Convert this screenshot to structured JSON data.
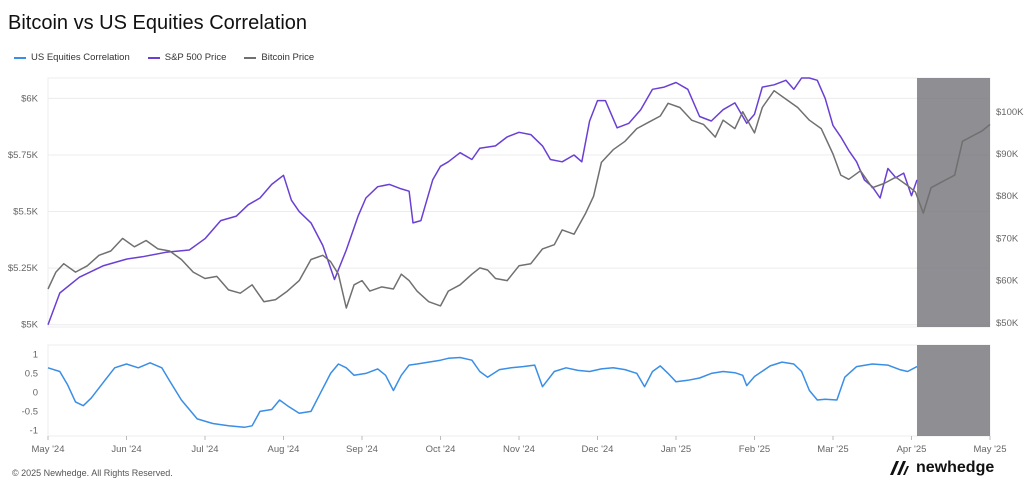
{
  "title": "Bitcoin vs US Equities Correlation",
  "footer": "© 2025 Newhedge. All Rights Reserved.",
  "brand": "newhedge",
  "colors": {
    "correlation": "#3a8ee6",
    "sp500": "#6a3fd4",
    "bitcoin": "#707070",
    "shade": "#7a7a80",
    "grid": "#ececec"
  },
  "chart_data": [
    {
      "type": "line",
      "panel": "top",
      "legend": [
        {
          "name": "US Equities Correlation",
          "color": "#3a8ee6"
        },
        {
          "name": "S&P 500 Price",
          "color": "#6a3fd4"
        },
        {
          "name": "Bitcoin Price",
          "color": "#707070"
        }
      ],
      "left_axis": {
        "ticks": [
          "$5K",
          "$5.25K",
          "$5.5K",
          "$5.75K",
          "$6K"
        ],
        "tick_values": [
          5000,
          5250,
          5500,
          5750,
          6000
        ],
        "range": [
          4990,
          6090
        ]
      },
      "right_axis": {
        "ticks": [
          "$50K",
          "$60K",
          "$70K",
          "$80K",
          "$90K",
          "$100K"
        ],
        "tick_values": [
          50000,
          60000,
          70000,
          80000,
          90000,
          100000
        ],
        "range": [
          49000,
          108000
        ]
      },
      "shaded_region": {
        "from": 11.07,
        "to": 12.0
      },
      "series": [
        {
          "name": "S&P 500 Price",
          "axis": "left",
          "points": [
            [
              0,
              5000
            ],
            [
              0.15,
              5140
            ],
            [
              0.4,
              5210
            ],
            [
              0.7,
              5260
            ],
            [
              1.0,
              5290
            ],
            [
              1.2,
              5300
            ],
            [
              1.5,
              5320
            ],
            [
              1.8,
              5330
            ],
            [
              2.0,
              5380
            ],
            [
              2.2,
              5460
            ],
            [
              2.4,
              5480
            ],
            [
              2.55,
              5530
            ],
            [
              2.7,
              5560
            ],
            [
              2.85,
              5620
            ],
            [
              3.0,
              5660
            ],
            [
              3.1,
              5550
            ],
            [
              3.2,
              5500
            ],
            [
              3.35,
              5450
            ],
            [
              3.5,
              5350
            ],
            [
              3.6,
              5250
            ],
            [
              3.65,
              5200
            ],
            [
              3.8,
              5330
            ],
            [
              3.95,
              5480
            ],
            [
              4.05,
              5560
            ],
            [
              4.2,
              5610
            ],
            [
              4.35,
              5620
            ],
            [
              4.5,
              5600
            ],
            [
              4.6,
              5590
            ],
            [
              4.65,
              5450
            ],
            [
              4.75,
              5460
            ],
            [
              4.9,
              5640
            ],
            [
              5.0,
              5700
            ],
            [
              5.1,
              5720
            ],
            [
              5.25,
              5760
            ],
            [
              5.4,
              5730
            ],
            [
              5.5,
              5780
            ],
            [
              5.7,
              5790
            ],
            [
              5.85,
              5830
            ],
            [
              6.0,
              5850
            ],
            [
              6.15,
              5840
            ],
            [
              6.3,
              5790
            ],
            [
              6.4,
              5730
            ],
            [
              6.55,
              5720
            ],
            [
              6.7,
              5750
            ],
            [
              6.8,
              5720
            ],
            [
              6.9,
              5900
            ],
            [
              7.0,
              5990
            ],
            [
              7.1,
              5990
            ],
            [
              7.25,
              5870
            ],
            [
              7.4,
              5890
            ],
            [
              7.55,
              5950
            ],
            [
              7.7,
              6040
            ],
            [
              7.85,
              6050
            ],
            [
              8.0,
              6070
            ],
            [
              8.15,
              6040
            ],
            [
              8.3,
              5920
            ],
            [
              8.45,
              5900
            ],
            [
              8.6,
              5950
            ],
            [
              8.75,
              5980
            ],
            [
              8.9,
              5890
            ],
            [
              9.0,
              5930
            ],
            [
              9.1,
              6050
            ],
            [
              9.25,
              6060
            ],
            [
              9.4,
              6080
            ],
            [
              9.5,
              6040
            ],
            [
              9.6,
              6090
            ],
            [
              9.7,
              6090
            ],
            [
              9.8,
              6080
            ],
            [
              9.9,
              6000
            ],
            [
              10.0,
              5880
            ],
            [
              10.1,
              5830
            ],
            [
              10.2,
              5770
            ],
            [
              10.3,
              5720
            ],
            [
              10.4,
              5640
            ],
            [
              10.5,
              5610
            ],
            [
              10.6,
              5560
            ],
            [
              10.7,
              5690
            ],
            [
              10.8,
              5650
            ],
            [
              10.9,
              5670
            ],
            [
              11.0,
              5570
            ],
            [
              11.07,
              5640
            ]
          ]
        },
        {
          "name": "Bitcoin Price",
          "axis": "right",
          "points": [
            [
              0,
              58000
            ],
            [
              0.1,
              62000
            ],
            [
              0.2,
              64000
            ],
            [
              0.35,
              62000
            ],
            [
              0.5,
              63500
            ],
            [
              0.65,
              66000
            ],
            [
              0.8,
              67000
            ],
            [
              0.95,
              70000
            ],
            [
              1.1,
              68000
            ],
            [
              1.25,
              69500
            ],
            [
              1.4,
              67500
            ],
            [
              1.55,
              67000
            ],
            [
              1.7,
              65000
            ],
            [
              1.85,
              62000
            ],
            [
              2.0,
              60500
            ],
            [
              2.15,
              61000
            ],
            [
              2.3,
              57800
            ],
            [
              2.45,
              57000
            ],
            [
              2.6,
              59000
            ],
            [
              2.75,
              55000
            ],
            [
              2.9,
              55500
            ],
            [
              3.05,
              57500
            ],
            [
              3.2,
              60000
            ],
            [
              3.35,
              65000
            ],
            [
              3.5,
              66000
            ],
            [
              3.6,
              64500
            ],
            [
              3.7,
              61500
            ],
            [
              3.8,
              53500
            ],
            [
              3.9,
              59000
            ],
            [
              4.0,
              60000
            ],
            [
              4.1,
              57500
            ],
            [
              4.25,
              58500
            ],
            [
              4.4,
              58000
            ],
            [
              4.5,
              61500
            ],
            [
              4.6,
              60000
            ],
            [
              4.7,
              57500
            ],
            [
              4.85,
              55000
            ],
            [
              5.0,
              54000
            ],
            [
              5.1,
              57500
            ],
            [
              5.25,
              59000
            ],
            [
              5.4,
              61500
            ],
            [
              5.5,
              63000
            ],
            [
              5.6,
              62500
            ],
            [
              5.7,
              60500
            ],
            [
              5.85,
              60000
            ],
            [
              6.0,
              63500
            ],
            [
              6.15,
              64000
            ],
            [
              6.3,
              67500
            ],
            [
              6.45,
              68500
            ],
            [
              6.55,
              72000
            ],
            [
              6.7,
              71000
            ],
            [
              6.85,
              76000
            ],
            [
              6.95,
              80000
            ],
            [
              7.05,
              88000
            ],
            [
              7.2,
              91000
            ],
            [
              7.35,
              93000
            ],
            [
              7.5,
              96000
            ],
            [
              7.65,
              97500
            ],
            [
              7.8,
              99000
            ],
            [
              7.9,
              102000
            ],
            [
              8.05,
              101000
            ],
            [
              8.2,
              98000
            ],
            [
              8.35,
              97000
            ],
            [
              8.5,
              94000
            ],
            [
              8.6,
              98000
            ],
            [
              8.75,
              96000
            ],
            [
              8.85,
              100000
            ],
            [
              9.0,
              95000
            ],
            [
              9.1,
              101000
            ],
            [
              9.25,
              105000
            ],
            [
              9.4,
              103000
            ],
            [
              9.55,
              101000
            ],
            [
              9.7,
              98000
            ],
            [
              9.85,
              96000
            ],
            [
              10.0,
              90000
            ],
            [
              10.1,
              85000
            ],
            [
              10.2,
              84000
            ],
            [
              10.35,
              86000
            ],
            [
              10.5,
              82000
            ],
            [
              10.65,
              83000
            ],
            [
              10.8,
              84500
            ],
            [
              10.95,
              82500
            ],
            [
              11.05,
              81000
            ],
            [
              11.15,
              76000
            ],
            [
              11.25,
              82000
            ],
            [
              11.4,
              83500
            ],
            [
              11.55,
              85000
            ],
            [
              11.65,
              93000
            ],
            [
              11.8,
              94500
            ],
            [
              11.9,
              95500
            ],
            [
              12.0,
              97000
            ]
          ]
        }
      ]
    },
    {
      "type": "line",
      "panel": "bottom",
      "ticks": [
        "1",
        "0.5",
        "0",
        "-0.5",
        "-1"
      ],
      "tick_values": [
        1,
        0.5,
        0,
        -0.5,
        -1
      ],
      "range": [
        -1.15,
        1.25
      ],
      "x_ticks": [
        "May '24",
        "Jun '24",
        "Jul '24",
        "Aug '24",
        "Sep '24",
        "Oct '24",
        "Nov '24",
        "Dec '24",
        "Jan '25",
        "Feb '25",
        "Mar '25",
        "Apr '25",
        "May '25"
      ],
      "shaded_region": {
        "from": 11.07,
        "to": 12.0
      },
      "series": [
        {
          "name": "US Equities Correlation",
          "points": [
            [
              0,
              0.65
            ],
            [
              0.15,
              0.55
            ],
            [
              0.25,
              0.2
            ],
            [
              0.35,
              -0.25
            ],
            [
              0.45,
              -0.35
            ],
            [
              0.55,
              -0.15
            ],
            [
              0.7,
              0.25
            ],
            [
              0.85,
              0.65
            ],
            [
              1.0,
              0.75
            ],
            [
              1.15,
              0.65
            ],
            [
              1.3,
              0.78
            ],
            [
              1.45,
              0.65
            ],
            [
              1.55,
              0.3
            ],
            [
              1.7,
              -0.2
            ],
            [
              1.9,
              -0.7
            ],
            [
              2.1,
              -0.82
            ],
            [
              2.3,
              -0.88
            ],
            [
              2.5,
              -0.92
            ],
            [
              2.6,
              -0.88
            ],
            [
              2.7,
              -0.5
            ],
            [
              2.85,
              -0.45
            ],
            [
              2.95,
              -0.2
            ],
            [
              3.05,
              -0.35
            ],
            [
              3.2,
              -0.55
            ],
            [
              3.35,
              -0.5
            ],
            [
              3.45,
              -0.1
            ],
            [
              3.6,
              0.5
            ],
            [
              3.7,
              0.75
            ],
            [
              3.8,
              0.65
            ],
            [
              3.9,
              0.45
            ],
            [
              4.05,
              0.5
            ],
            [
              4.2,
              0.62
            ],
            [
              4.3,
              0.45
            ],
            [
              4.4,
              0.05
            ],
            [
              4.5,
              0.45
            ],
            [
              4.6,
              0.72
            ],
            [
              4.7,
              0.75
            ],
            [
              4.85,
              0.8
            ],
            [
              5.0,
              0.85
            ],
            [
              5.1,
              0.9
            ],
            [
              5.25,
              0.92
            ],
            [
              5.4,
              0.85
            ],
            [
              5.5,
              0.55
            ],
            [
              5.6,
              0.4
            ],
            [
              5.75,
              0.6
            ],
            [
              5.9,
              0.65
            ],
            [
              6.05,
              0.68
            ],
            [
              6.2,
              0.72
            ],
            [
              6.3,
              0.15
            ],
            [
              6.45,
              0.55
            ],
            [
              6.6,
              0.65
            ],
            [
              6.75,
              0.58
            ],
            [
              6.9,
              0.55
            ],
            [
              7.05,
              0.62
            ],
            [
              7.2,
              0.65
            ],
            [
              7.35,
              0.6
            ],
            [
              7.5,
              0.5
            ],
            [
              7.6,
              0.15
            ],
            [
              7.7,
              0.55
            ],
            [
              7.8,
              0.7
            ],
            [
              7.9,
              0.5
            ],
            [
              8.0,
              0.28
            ],
            [
              8.15,
              0.32
            ],
            [
              8.3,
              0.38
            ],
            [
              8.45,
              0.5
            ],
            [
              8.6,
              0.55
            ],
            [
              8.75,
              0.52
            ],
            [
              8.85,
              0.45
            ],
            [
              8.9,
              0.18
            ],
            [
              9.0,
              0.42
            ],
            [
              9.2,
              0.7
            ],
            [
              9.35,
              0.8
            ],
            [
              9.5,
              0.75
            ],
            [
              9.6,
              0.55
            ],
            [
              9.7,
              0.05
            ],
            [
              9.8,
              -0.2
            ],
            [
              9.9,
              -0.18
            ],
            [
              10.05,
              -0.2
            ],
            [
              10.15,
              0.4
            ],
            [
              10.3,
              0.68
            ],
            [
              10.5,
              0.75
            ],
            [
              10.7,
              0.72
            ],
            [
              10.85,
              0.6
            ],
            [
              10.95,
              0.55
            ],
            [
              11.07,
              0.68
            ]
          ]
        }
      ]
    }
  ]
}
